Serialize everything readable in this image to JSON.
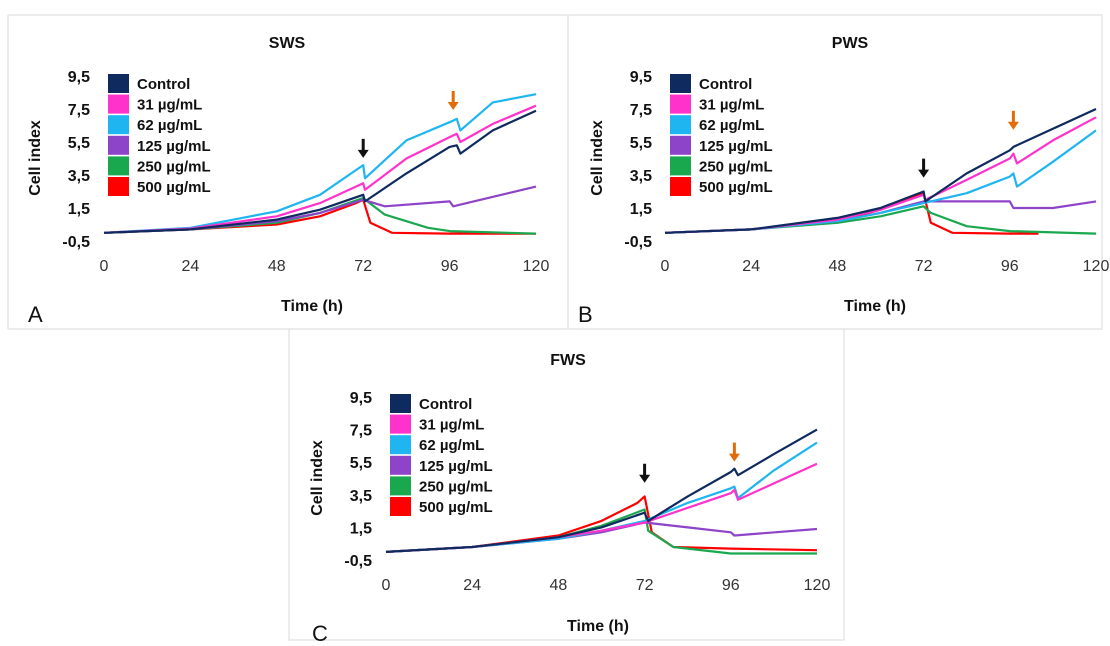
{
  "chart_data": [
    {
      "type": "line",
      "panel": "A",
      "title": "SWS",
      "xlabel": "Time (h)",
      "ylabel": "Cell index",
      "xlim": [
        0,
        120
      ],
      "ylim": [
        -0.5,
        9.5
      ],
      "x_ticks": [
        "0",
        "24",
        "48",
        "72",
        "96",
        "120"
      ],
      "y_ticks": [
        "9,5",
        "7,5",
        "5,5",
        "3,5",
        "1,5",
        "-0,5"
      ],
      "grid": false,
      "legend_position": "top-left",
      "annotations": [
        {
          "type": "arrow",
          "color": "#111111",
          "x": 72,
          "y": 4.6
        },
        {
          "type": "arrow",
          "color": "#E36C09",
          "x": 97,
          "y": 7.5
        }
      ],
      "series": [
        {
          "name": "Control",
          "color": "#0E2A5E",
          "x": [
            0,
            24,
            48,
            60,
            72,
            72.5,
            84,
            96,
            98,
            99,
            108,
            120
          ],
          "y": [
            0,
            0.2,
            0.8,
            1.4,
            2.3,
            1.9,
            3.6,
            5.2,
            5.3,
            4.8,
            6.2,
            7.4
          ]
        },
        {
          "name": "31 µg/mL",
          "color": "#FF33CC",
          "x": [
            0,
            24,
            48,
            60,
            72,
            72.5,
            84,
            96,
            98,
            99,
            108,
            120
          ],
          "y": [
            0,
            0.25,
            1.0,
            1.8,
            3.0,
            2.6,
            4.5,
            5.8,
            6.0,
            5.5,
            6.6,
            7.7
          ]
        },
        {
          "name": "62 µg/mL",
          "color": "#1EB5F0",
          "x": [
            0,
            24,
            48,
            60,
            72,
            72.5,
            84,
            96,
            98,
            99,
            108,
            120
          ],
          "y": [
            0,
            0.3,
            1.3,
            2.3,
            4.1,
            3.3,
            5.6,
            6.7,
            6.9,
            6.2,
            7.9,
            8.4
          ]
        },
        {
          "name": "125 µg/mL",
          "color": "#8E44C8",
          "x": [
            0,
            24,
            48,
            60,
            72,
            78,
            96,
            97,
            120
          ],
          "y": [
            0,
            0.2,
            0.7,
            1.2,
            2.0,
            1.6,
            1.9,
            1.6,
            2.8
          ]
        },
        {
          "name": "250 µg/mL",
          "color": "#1AA84F",
          "x": [
            0,
            24,
            48,
            60,
            72,
            78,
            90,
            96,
            120
          ],
          "y": [
            0,
            0.2,
            0.6,
            1.2,
            2.1,
            1.1,
            0.3,
            0.1,
            -0.05
          ]
        },
        {
          "name": "500 µg/mL",
          "color": "#FF0000",
          "x": [
            0,
            24,
            48,
            60,
            70,
            72,
            74,
            80,
            96,
            120
          ],
          "y": [
            0,
            0.2,
            0.5,
            1.0,
            1.8,
            2.0,
            0.6,
            0.0,
            -0.05,
            -0.05
          ]
        }
      ]
    },
    {
      "type": "line",
      "panel": "B",
      "title": "PWS",
      "xlabel": "Time (h)",
      "ylabel": "Cell index",
      "xlim": [
        0,
        120
      ],
      "ylim": [
        -0.5,
        9.5
      ],
      "x_ticks": [
        "0",
        "24",
        "48",
        "72",
        "96",
        "120"
      ],
      "y_ticks": [
        "9,5",
        "7,5",
        "5,5",
        "3,5",
        "1,5",
        "-0,5"
      ],
      "grid": false,
      "legend_position": "top-left",
      "annotations": [
        {
          "type": "arrow",
          "color": "#111111",
          "x": 72,
          "y": 3.4
        },
        {
          "type": "arrow",
          "color": "#E36C09",
          "x": 97,
          "y": 6.3
        }
      ],
      "series": [
        {
          "name": "Control",
          "color": "#0E2A5E",
          "x": [
            0,
            24,
            48,
            60,
            72,
            72.5,
            84,
            96,
            97,
            108,
            120
          ],
          "y": [
            0,
            0.2,
            0.9,
            1.5,
            2.5,
            1.9,
            3.6,
            5.0,
            5.2,
            6.3,
            7.5
          ]
        },
        {
          "name": "31 µg/mL",
          "color": "#FF33CC",
          "x": [
            0,
            24,
            48,
            60,
            72,
            72.5,
            84,
            96,
            97,
            98,
            108,
            120
          ],
          "y": [
            0,
            0.2,
            0.8,
            1.4,
            2.3,
            2.0,
            3.2,
            4.5,
            4.8,
            4.2,
            5.6,
            7.0
          ]
        },
        {
          "name": "62 µg/mL",
          "color": "#1EB5F0",
          "x": [
            0,
            24,
            48,
            60,
            72,
            84,
            96,
            97,
            98,
            108,
            120
          ],
          "y": [
            0,
            0.2,
            0.7,
            1.2,
            1.8,
            2.4,
            3.4,
            3.6,
            2.8,
            4.3,
            6.2
          ]
        },
        {
          "name": "125 µg/mL",
          "color": "#8E44C8",
          "x": [
            0,
            24,
            48,
            60,
            72,
            84,
            96,
            97,
            108,
            120
          ],
          "y": [
            0,
            0.2,
            0.7,
            1.2,
            1.9,
            1.9,
            1.9,
            1.5,
            1.5,
            1.9
          ]
        },
        {
          "name": "250 µg/mL",
          "color": "#1AA84F",
          "x": [
            0,
            24,
            48,
            60,
            72,
            74,
            84,
            96,
            120
          ],
          "y": [
            0,
            0.2,
            0.6,
            1.0,
            1.6,
            1.2,
            0.4,
            0.1,
            -0.05
          ]
        },
        {
          "name": "500 µg/mL",
          "color": "#FF0000",
          "x": [
            0,
            24,
            48,
            60,
            70,
            72,
            74,
            80,
            96,
            104
          ],
          "y": [
            0,
            0.2,
            0.7,
            1.4,
            2.2,
            2.4,
            0.6,
            0.0,
            -0.05,
            -0.05
          ]
        }
      ]
    },
    {
      "type": "line",
      "panel": "C",
      "title": "FWS",
      "xlabel": "Time (h)",
      "ylabel": "Cell index",
      "xlim": [
        0,
        120
      ],
      "ylim": [
        -0.5,
        9.5
      ],
      "x_ticks": [
        "0",
        "24",
        "48",
        "72",
        "96",
        "120"
      ],
      "y_ticks": [
        "9,5",
        "7,5",
        "5,5",
        "3,5",
        "1,5",
        "-0,5"
      ],
      "grid": false,
      "legend_position": "top-left",
      "annotations": [
        {
          "type": "arrow",
          "color": "#111111",
          "x": 72,
          "y": 4.3
        },
        {
          "type": "arrow",
          "color": "#E36C09",
          "x": 97,
          "y": 5.6
        }
      ],
      "series": [
        {
          "name": "Control",
          "color": "#0E2A5E",
          "x": [
            0,
            24,
            48,
            60,
            72,
            73,
            84,
            96,
            97,
            98,
            108,
            120
          ],
          "y": [
            0,
            0.3,
            0.9,
            1.5,
            2.4,
            1.9,
            3.4,
            4.9,
            5.1,
            4.7,
            6.0,
            7.5
          ]
        },
        {
          "name": "31 µg/mL",
          "color": "#FF33CC",
          "x": [
            0,
            24,
            48,
            60,
            72,
            84,
            96,
            97,
            98,
            108,
            120
          ],
          "y": [
            0,
            0.3,
            0.9,
            1.3,
            1.8,
            2.7,
            3.6,
            3.8,
            3.2,
            4.2,
            5.4
          ]
        },
        {
          "name": "62 µg/mL",
          "color": "#1EB5F0",
          "x": [
            0,
            24,
            48,
            60,
            72,
            84,
            96,
            97,
            98,
            108,
            120
          ],
          "y": [
            0,
            0.3,
            0.8,
            1.3,
            1.9,
            3.0,
            3.9,
            4.0,
            3.3,
            5.0,
            6.7
          ]
        },
        {
          "name": "125 µg/mL",
          "color": "#8E44C8",
          "x": [
            0,
            24,
            48,
            60,
            72,
            84,
            96,
            97,
            120
          ],
          "y": [
            0,
            0.3,
            0.8,
            1.2,
            1.8,
            1.5,
            1.2,
            1.0,
            1.4
          ]
        },
        {
          "name": "250 µg/mL",
          "color": "#1AA84F",
          "x": [
            0,
            24,
            48,
            60,
            72,
            73,
            80,
            96,
            120
          ],
          "y": [
            0,
            0.3,
            0.9,
            1.6,
            2.6,
            1.3,
            0.3,
            -0.1,
            -0.1
          ]
        },
        {
          "name": "500 µg/mL",
          "color": "#FF0000",
          "x": [
            0,
            24,
            48,
            60,
            70,
            72,
            74,
            80,
            96,
            120
          ],
          "y": [
            0,
            0.3,
            1.0,
            1.9,
            3.0,
            3.4,
            1.2,
            0.3,
            0.2,
            0.1
          ]
        }
      ]
    }
  ]
}
